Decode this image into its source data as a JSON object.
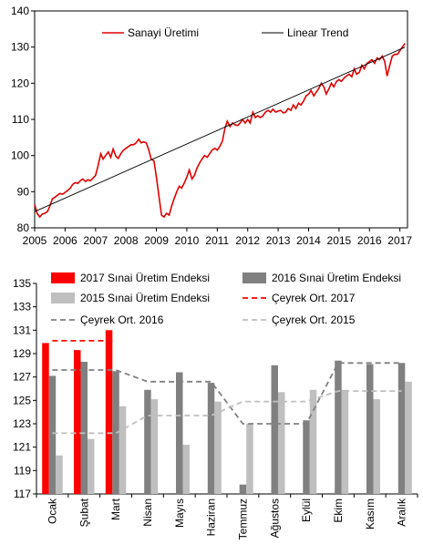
{
  "chart_data": [
    {
      "type": "line",
      "title": "",
      "xlabel": "",
      "ylabel": "",
      "ylim": [
        80,
        140
      ],
      "xlim": [
        2005,
        2017.25
      ],
      "y_ticks": [
        "80",
        "90",
        "100",
        "110",
        "120",
        "130",
        "140"
      ],
      "x_ticks": [
        "2005",
        "2006",
        "2007",
        "2008",
        "2009",
        "2010",
        "2011",
        "2012",
        "2013",
        "2014",
        "2015",
        "2016",
        "2017"
      ],
      "grid": false,
      "legend_position": "top",
      "series": [
        {
          "name": "Sanayi Üretimi",
          "color": "#e00000",
          "points": [
            [
              2005.0,
              86.5
            ],
            [
              2005.08,
              84.0
            ],
            [
              2005.17,
              83.0
            ],
            [
              2005.25,
              83.8
            ],
            [
              2005.33,
              84.0
            ],
            [
              2005.42,
              84.5
            ],
            [
              2005.5,
              86.0
            ],
            [
              2005.58,
              88.0
            ],
            [
              2005.67,
              88.5
            ],
            [
              2005.75,
              89.0
            ],
            [
              2005.83,
              89.5
            ],
            [
              2005.92,
              89.3
            ],
            [
              2006.0,
              89.8
            ],
            [
              2006.08,
              90.3
            ],
            [
              2006.17,
              91.0
            ],
            [
              2006.25,
              92.0
            ],
            [
              2006.33,
              92.5
            ],
            [
              2006.42,
              92.3
            ],
            [
              2006.5,
              93.0
            ],
            [
              2006.58,
              93.5
            ],
            [
              2006.67,
              92.8
            ],
            [
              2006.75,
              93.3
            ],
            [
              2006.83,
              93.0
            ],
            [
              2006.92,
              93.8
            ],
            [
              2007.0,
              94.5
            ],
            [
              2007.08,
              97.0
            ],
            [
              2007.17,
              100.5
            ],
            [
              2007.25,
              99.0
            ],
            [
              2007.33,
              100.0
            ],
            [
              2007.42,
              101.0
            ],
            [
              2007.5,
              99.5
            ],
            [
              2007.58,
              101.8
            ],
            [
              2007.67,
              99.8
            ],
            [
              2007.75,
              99.2
            ],
            [
              2007.83,
              100.5
            ],
            [
              2007.92,
              101.5
            ],
            [
              2008.0,
              102.0
            ],
            [
              2008.08,
              102.5
            ],
            [
              2008.17,
              103.0
            ],
            [
              2008.25,
              103.0
            ],
            [
              2008.33,
              103.5
            ],
            [
              2008.42,
              104.5
            ],
            [
              2008.5,
              103.5
            ],
            [
              2008.58,
              103.8
            ],
            [
              2008.67,
              103.5
            ],
            [
              2008.75,
              101.5
            ],
            [
              2008.83,
              99.0
            ],
            [
              2008.92,
              98.5
            ],
            [
              2009.0,
              94.0
            ],
            [
              2009.08,
              89.0
            ],
            [
              2009.17,
              83.5
            ],
            [
              2009.25,
              83.0
            ],
            [
              2009.33,
              84.0
            ],
            [
              2009.42,
              83.5
            ],
            [
              2009.5,
              86.0
            ],
            [
              2009.58,
              88.0
            ],
            [
              2009.67,
              90.0
            ],
            [
              2009.75,
              91.5
            ],
            [
              2009.83,
              91.0
            ],
            [
              2009.92,
              92.5
            ],
            [
              2010.0,
              94.0
            ],
            [
              2010.08,
              96.0
            ],
            [
              2010.17,
              93.5
            ],
            [
              2010.25,
              94.5
            ],
            [
              2010.33,
              96.5
            ],
            [
              2010.42,
              98.0
            ],
            [
              2010.5,
              99.0
            ],
            [
              2010.58,
              100.0
            ],
            [
              2010.67,
              99.5
            ],
            [
              2010.75,
              100.5
            ],
            [
              2010.83,
              101.5
            ],
            [
              2010.92,
              102.0
            ],
            [
              2011.0,
              101.5
            ],
            [
              2011.08,
              102.5
            ],
            [
              2011.17,
              104.0
            ],
            [
              2011.25,
              107.5
            ],
            [
              2011.33,
              109.5
            ],
            [
              2011.42,
              108.0
            ],
            [
              2011.5,
              109.0
            ],
            [
              2011.58,
              108.5
            ],
            [
              2011.67,
              108.3
            ],
            [
              2011.75,
              109.0
            ],
            [
              2011.83,
              110.0
            ],
            [
              2011.92,
              109.0
            ],
            [
              2012.0,
              110.0
            ],
            [
              2012.08,
              109.0
            ],
            [
              2012.17,
              112.0
            ],
            [
              2012.25,
              110.5
            ],
            [
              2012.33,
              111.0
            ],
            [
              2012.42,
              110.5
            ],
            [
              2012.5,
              111.0
            ],
            [
              2012.58,
              112.0
            ],
            [
              2012.67,
              112.5
            ],
            [
              2012.75,
              112.0
            ],
            [
              2012.83,
              112.8
            ],
            [
              2012.92,
              112.0
            ],
            [
              2013.0,
              112.3
            ],
            [
              2013.08,
              112.5
            ],
            [
              2013.17,
              111.8
            ],
            [
              2013.25,
              112.0
            ],
            [
              2013.33,
              113.0
            ],
            [
              2013.42,
              112.5
            ],
            [
              2013.5,
              114.0
            ],
            [
              2013.58,
              113.0
            ],
            [
              2013.67,
              114.5
            ],
            [
              2013.75,
              114.0
            ],
            [
              2013.83,
              115.0
            ],
            [
              2013.92,
              116.5
            ],
            [
              2014.0,
              117.0
            ],
            [
              2014.08,
              118.0
            ],
            [
              2014.17,
              116.5
            ],
            [
              2014.25,
              117.5
            ],
            [
              2014.33,
              118.5
            ],
            [
              2014.42,
              120.0
            ],
            [
              2014.5,
              119.0
            ],
            [
              2014.58,
              117.0
            ],
            [
              2014.67,
              118.5
            ],
            [
              2014.75,
              120.0
            ],
            [
              2014.83,
              119.0
            ],
            [
              2014.92,
              120.5
            ],
            [
              2015.0,
              121.0
            ],
            [
              2015.08,
              120.5
            ],
            [
              2015.17,
              121.5
            ],
            [
              2015.25,
              122.0
            ],
            [
              2015.33,
              122.5
            ],
            [
              2015.42,
              121.8
            ],
            [
              2015.5,
              124.0
            ],
            [
              2015.58,
              122.5
            ],
            [
              2015.67,
              123.0
            ],
            [
              2015.75,
              125.0
            ],
            [
              2015.83,
              124.0
            ],
            [
              2015.92,
              125.5
            ],
            [
              2016.0,
              126.0
            ],
            [
              2016.08,
              126.5
            ],
            [
              2016.17,
              125.5
            ],
            [
              2016.25,
              127.0
            ],
            [
              2016.33,
              126.5
            ],
            [
              2016.42,
              127.5
            ],
            [
              2016.5,
              126.0
            ],
            [
              2016.58,
              122.0
            ],
            [
              2016.67,
              125.0
            ],
            [
              2016.75,
              127.5
            ],
            [
              2016.83,
              128.0
            ],
            [
              2016.92,
              128.0
            ],
            [
              2017.0,
              129.0
            ],
            [
              2017.08,
              130.0
            ],
            [
              2017.17,
              131.0
            ]
          ]
        },
        {
          "name": "Linear Trend",
          "color": "#000000",
          "points": [
            [
              2005.0,
              84.5
            ],
            [
              2017.17,
              130.0
            ]
          ]
        }
      ]
    },
    {
      "type": "bar",
      "title": "",
      "xlabel": "",
      "ylabel": "",
      "ylim": [
        117,
        135
      ],
      "y_ticks": [
        "117",
        "119",
        "121",
        "123",
        "125",
        "127",
        "129",
        "131",
        "133",
        "135"
      ],
      "grid": false,
      "legend_position": "top",
      "categories": [
        "Ocak",
        "Şubat",
        "Mart",
        "Nisan",
        "Mayıs",
        "Haziran",
        "Temmuz",
        "Ağustos",
        "Eylül",
        "Ekim",
        "Kasım",
        "Aralık"
      ],
      "series": [
        {
          "name": "2017 Sınai Üretim Endeksi",
          "color": "#ff0000",
          "values": [
            129.9,
            129.3,
            131.0,
            null,
            null,
            null,
            null,
            null,
            null,
            null,
            null,
            null
          ]
        },
        {
          "name": "2016 Sınai Üretim Endeksi",
          "color": "#808080",
          "values": [
            127.1,
            128.3,
            127.5,
            125.9,
            127.4,
            126.5,
            117.8,
            128.0,
            123.3,
            128.4,
            128.1,
            128.2
          ]
        },
        {
          "name": "2015 Sınai Üretim Endeksi",
          "color": "#bfbfbf",
          "values": [
            120.3,
            121.7,
            124.5,
            125.1,
            121.2,
            124.9,
            123.0,
            125.7,
            125.9,
            125.9,
            125.1,
            126.6
          ]
        }
      ],
      "lines": [
        {
          "name": "Çeyrek Ort. 2017",
          "color": "#ff0000",
          "dash": "dashed",
          "values": [
            130.1,
            130.1,
            130.1,
            null,
            null,
            null,
            null,
            null,
            null,
            null,
            null,
            null
          ]
        },
        {
          "name": "Çeyrek Ort. 2016",
          "color": "#808080",
          "dash": "dashed",
          "values": [
            127.6,
            127.6,
            127.6,
            126.6,
            126.6,
            126.6,
            123.0,
            123.0,
            123.0,
            128.2,
            128.2,
            128.2
          ]
        },
        {
          "name": "Çeyrek Ort. 2015",
          "color": "#bfbfbf",
          "dash": "dashed",
          "values": [
            122.2,
            122.2,
            122.2,
            123.7,
            123.7,
            123.7,
            124.9,
            124.9,
            124.9,
            125.8,
            125.8,
            125.8
          ]
        }
      ]
    }
  ]
}
